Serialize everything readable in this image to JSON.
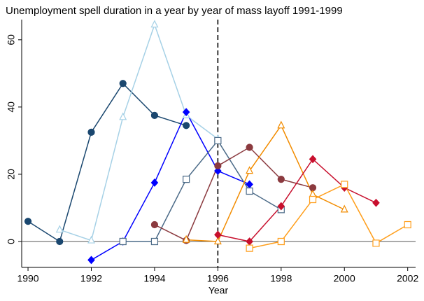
{
  "chart_data": {
    "type": "line",
    "title": "Unemployment spell duration in a year by year of mass layoff 1991-1999",
    "x_label": "Year",
    "x": [
      1990,
      1991,
      1992,
      1993,
      1994,
      1995,
      1996,
      1997,
      1998,
      1999,
      2000,
      2001,
      2002
    ],
    "xlim": [
      1989.8,
      2002.25
    ],
    "xticks": [
      1990,
      1992,
      1994,
      1996,
      1998,
      2000,
      2002
    ],
    "ylim": [
      -7.7,
      66
    ],
    "yticks": [
      0,
      20,
      40,
      60
    ],
    "vline": 1996,
    "hline": 0,
    "series": [
      {
        "color": "#1a476f",
        "marker": "circle",
        "values": [
          6,
          0,
          32.5,
          47,
          37.5,
          34.5,
          null,
          null,
          null,
          null,
          null,
          null,
          null
        ]
      },
      {
        "color": "#a6d1e6",
        "marker": "triangle",
        "values": [
          null,
          3.5,
          0.3,
          37,
          64.5,
          37.5,
          30.5,
          null,
          null,
          null,
          null,
          null,
          null
        ]
      },
      {
        "color": "#0000ff",
        "marker": "diamond",
        "values": [
          null,
          null,
          -5.5,
          0,
          17.5,
          38.5,
          21,
          17,
          null,
          null,
          null,
          null,
          null
        ]
      },
      {
        "color": "#4c6b88",
        "marker": "square",
        "values": [
          null,
          null,
          null,
          0,
          0,
          18.5,
          30,
          15,
          9.5,
          null,
          null,
          null,
          null
        ]
      },
      {
        "color": "#8b3a3f",
        "marker": "circle",
        "values": [
          null,
          null,
          null,
          null,
          5,
          0.3,
          22.5,
          28,
          18.5,
          16,
          null,
          null,
          null
        ]
      },
      {
        "color": "#f28c00",
        "marker": "triangle",
        "values": [
          null,
          null,
          null,
          null,
          null,
          0.5,
          0,
          21,
          34.5,
          14,
          9.5,
          null,
          null
        ]
      },
      {
        "color": "#c8102e",
        "marker": "diamond",
        "values": [
          null,
          null,
          null,
          null,
          null,
          null,
          2,
          0,
          10.5,
          24.5,
          16,
          11.5,
          null
        ]
      },
      {
        "color": "#ff9e1b",
        "marker": "square",
        "values": [
          null,
          null,
          null,
          null,
          null,
          null,
          null,
          -2,
          0,
          12.5,
          17,
          -0.5,
          5
        ]
      }
    ]
  }
}
